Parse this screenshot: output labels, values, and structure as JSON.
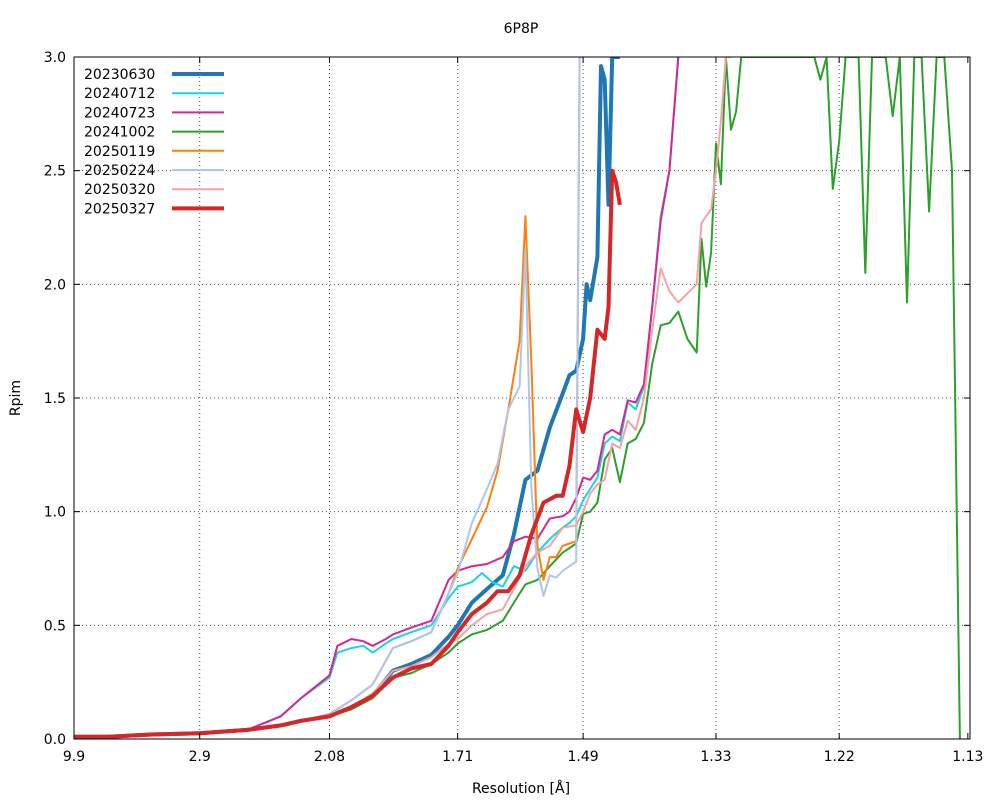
{
  "chart_data": {
    "type": "line",
    "title": "6P8P",
    "xlabel": "Resolution [Å]",
    "ylabel": "Rpim",
    "ylim": [
      0,
      3.0
    ],
    "xlim_inv_d2": [
      0.0102,
      0.785
    ],
    "grid": true,
    "legend_position": "top-left",
    "x_ticks": [
      "9.9",
      "2.9",
      "2.08",
      "1.71",
      "1.49",
      "1.33",
      "1.22",
      "1.13"
    ],
    "y_ticks": [
      "0.0",
      "0.5",
      "1.0",
      "1.5",
      "2.0",
      "2.5",
      "3.0"
    ],
    "series": [
      {
        "name": "20230630",
        "color": "#1f77b4",
        "linewidth": 4,
        "x": [
          9.9,
          5.0,
          3.6,
          2.9,
          2.5,
          2.3,
          2.2,
          2.08,
          2.0,
          1.93,
          1.87,
          1.82,
          1.77,
          1.73,
          1.71,
          1.68,
          1.65,
          1.62,
          1.6,
          1.58,
          1.56,
          1.54,
          1.52,
          1.51,
          1.5,
          1.49,
          1.485,
          1.48,
          1.47,
          1.465,
          1.46,
          1.455,
          1.45,
          1.445,
          1.44
        ],
        "y": [
          0.01,
          0.01,
          0.02,
          0.025,
          0.04,
          0.06,
          0.08,
          0.1,
          0.14,
          0.19,
          0.3,
          0.33,
          0.37,
          0.45,
          0.5,
          0.6,
          0.66,
          0.72,
          0.9,
          1.14,
          1.18,
          1.37,
          1.52,
          1.6,
          1.62,
          1.76,
          2.0,
          1.93,
          2.12,
          2.96,
          2.9,
          2.35,
          3.0,
          3.0,
          3.0
        ]
      },
      {
        "name": "20240712",
        "color": "#17d5e6",
        "linewidth": 2,
        "x": [
          9.9,
          5.0,
          3.6,
          2.9,
          2.5,
          2.3,
          2.2,
          2.08,
          2.05,
          2.0,
          1.96,
          1.93,
          1.89,
          1.87,
          1.82,
          1.77,
          1.73,
          1.71,
          1.68,
          1.66,
          1.64,
          1.62,
          1.6,
          1.58,
          1.56,
          1.54,
          1.52,
          1.51,
          1.5,
          1.49,
          1.48,
          1.47,
          1.46,
          1.45,
          1.44,
          1.43,
          1.42,
          1.41,
          1.4,
          1.39,
          1.38,
          1.37
        ],
        "y": [
          0.01,
          0.01,
          0.02,
          0.025,
          0.04,
          0.1,
          0.18,
          0.27,
          0.38,
          0.4,
          0.41,
          0.38,
          0.42,
          0.44,
          0.47,
          0.5,
          0.62,
          0.67,
          0.69,
          0.73,
          0.69,
          0.67,
          0.76,
          0.74,
          0.82,
          0.88,
          0.93,
          0.95,
          0.98,
          1.05,
          1.1,
          1.15,
          1.3,
          1.33,
          1.31,
          1.48,
          1.45,
          1.55,
          1.9,
          2.3,
          2.5,
          3.0
        ]
      },
      {
        "name": "20240723",
        "color": "#d62790",
        "linewidth": 2,
        "x": [
          9.9,
          5.0,
          3.6,
          2.9,
          2.5,
          2.3,
          2.2,
          2.08,
          2.05,
          2.0,
          1.96,
          1.93,
          1.89,
          1.87,
          1.82,
          1.77,
          1.73,
          1.71,
          1.68,
          1.65,
          1.62,
          1.6,
          1.58,
          1.56,
          1.54,
          1.52,
          1.51,
          1.5,
          1.49,
          1.48,
          1.47,
          1.46,
          1.45,
          1.44,
          1.43,
          1.42,
          1.41,
          1.4,
          1.39,
          1.38,
          1.37
        ],
        "y": [
          0.01,
          0.01,
          0.02,
          0.025,
          0.04,
          0.1,
          0.18,
          0.28,
          0.41,
          0.44,
          0.43,
          0.41,
          0.44,
          0.46,
          0.49,
          0.52,
          0.7,
          0.74,
          0.76,
          0.77,
          0.8,
          0.87,
          0.89,
          0.88,
          0.97,
          0.98,
          1.0,
          1.06,
          1.15,
          1.14,
          1.18,
          1.34,
          1.36,
          1.34,
          1.49,
          1.48,
          1.56,
          1.9,
          2.28,
          2.5,
          3.0
        ]
      },
      {
        "name": "20241002",
        "color": "#2ca02c",
        "linewidth": 2,
        "x": [
          9.9,
          5.0,
          3.6,
          2.9,
          2.5,
          2.3,
          2.2,
          2.08,
          2.0,
          1.93,
          1.87,
          1.82,
          1.77,
          1.73,
          1.71,
          1.68,
          1.65,
          1.62,
          1.6,
          1.58,
          1.56,
          1.54,
          1.52,
          1.5,
          1.49,
          1.48,
          1.47,
          1.46,
          1.45,
          1.44,
          1.43,
          1.42,
          1.41,
          1.4,
          1.39,
          1.38,
          1.37,
          1.36,
          1.35,
          1.345,
          1.34,
          1.335,
          1.33,
          1.325,
          1.32,
          1.315,
          1.31,
          1.305,
          1.3,
          1.295,
          1.29,
          1.285,
          1.28,
          1.275,
          1.27,
          1.265,
          1.26,
          1.255,
          1.25,
          1.245,
          1.24,
          1.235,
          1.23,
          1.225,
          1.22,
          1.215,
          1.21,
          1.205,
          1.2,
          1.195,
          1.19,
          1.185,
          1.18,
          1.175,
          1.17,
          1.165,
          1.16,
          1.155,
          1.15,
          1.145,
          1.14,
          1.135
        ],
        "y": [
          0.01,
          0.01,
          0.02,
          0.025,
          0.04,
          0.06,
          0.08,
          0.1,
          0.13,
          0.18,
          0.27,
          0.29,
          0.33,
          0.38,
          0.42,
          0.46,
          0.48,
          0.52,
          0.6,
          0.68,
          0.7,
          0.76,
          0.82,
          0.86,
          0.99,
          1.0,
          1.04,
          1.23,
          1.28,
          1.13,
          1.3,
          1.32,
          1.39,
          1.65,
          1.82,
          1.83,
          1.88,
          1.76,
          1.7,
          2.2,
          1.99,
          2.14,
          2.62,
          2.44,
          3.0,
          2.68,
          2.76,
          3.0,
          3.0,
          3.0,
          3.0,
          3.0,
          3.0,
          3.0,
          3.0,
          3.0,
          3.0,
          3.0,
          3.0,
          3.0,
          3.0,
          2.9,
          3.0,
          2.42,
          2.63,
          3.0,
          3.0,
          3.0,
          2.05,
          3.0,
          3.0,
          3.0,
          2.74,
          3.0,
          1.92,
          3.0,
          3.0,
          2.32,
          3.0,
          3.0,
          2.5,
          0.0
        ]
      },
      {
        "name": "20250119",
        "color": "#ff7f0e",
        "linewidth": 2,
        "x": [
          9.9,
          5.0,
          3.6,
          2.9,
          2.5,
          2.3,
          2.2,
          2.08,
          2.0,
          1.93,
          1.87,
          1.82,
          1.77,
          1.73,
          1.71,
          1.68,
          1.65,
          1.63,
          1.61,
          1.59,
          1.58,
          1.57,
          1.56,
          1.55,
          1.54,
          1.53,
          1.52,
          1.51,
          1.5,
          1.495,
          1.49
        ],
        "y": [
          0.01,
          0.01,
          0.02,
          0.025,
          0.04,
          0.06,
          0.08,
          0.11,
          0.17,
          0.24,
          0.4,
          0.43,
          0.47,
          0.64,
          0.75,
          0.88,
          1.02,
          1.18,
          1.45,
          1.75,
          2.3,
          1.65,
          0.85,
          0.7,
          0.8,
          0.8,
          0.85,
          0.86,
          0.87,
          3.0,
          3.0
        ]
      },
      {
        "name": "20250224",
        "color": "#aec7e8",
        "linewidth": 2,
        "x": [
          9.9,
          5.0,
          3.6,
          2.9,
          2.5,
          2.3,
          2.2,
          2.08,
          2.0,
          1.93,
          1.87,
          1.82,
          1.77,
          1.73,
          1.71,
          1.68,
          1.65,
          1.63,
          1.61,
          1.59,
          1.58,
          1.57,
          1.56,
          1.55,
          1.54,
          1.53,
          1.52,
          1.51,
          1.5,
          1.495,
          1.49
        ],
        "y": [
          0.01,
          0.01,
          0.02,
          0.025,
          0.04,
          0.06,
          0.08,
          0.11,
          0.17,
          0.24,
          0.4,
          0.43,
          0.47,
          0.64,
          0.73,
          0.95,
          1.1,
          1.21,
          1.45,
          1.55,
          2.15,
          1.1,
          0.75,
          0.63,
          0.72,
          0.71,
          0.74,
          0.76,
          0.78,
          3.0,
          3.0
        ]
      },
      {
        "name": "20250320",
        "color": "#f4a3a3",
        "linewidth": 2,
        "x": [
          9.9,
          5.0,
          3.6,
          2.9,
          2.5,
          2.3,
          2.2,
          2.08,
          2.0,
          1.93,
          1.87,
          1.82,
          1.77,
          1.73,
          1.71,
          1.68,
          1.65,
          1.62,
          1.6,
          1.58,
          1.56,
          1.54,
          1.52,
          1.5,
          1.49,
          1.48,
          1.47,
          1.46,
          1.45,
          1.44,
          1.43,
          1.42,
          1.41,
          1.4,
          1.39,
          1.38,
          1.37,
          1.36,
          1.35,
          1.345,
          1.34,
          1.335,
          1.33,
          1.325,
          1.32,
          1.315
        ],
        "y": [
          0.01,
          0.01,
          0.02,
          0.025,
          0.04,
          0.06,
          0.08,
          0.11,
          0.14,
          0.2,
          0.3,
          0.32,
          0.36,
          0.42,
          0.44,
          0.5,
          0.55,
          0.57,
          0.66,
          0.76,
          0.82,
          0.85,
          0.93,
          0.94,
          1.0,
          1.08,
          1.12,
          1.14,
          1.3,
          1.28,
          1.4,
          1.36,
          1.5,
          1.8,
          2.07,
          1.97,
          1.92,
          1.96,
          2.0,
          2.27,
          2.3,
          2.33,
          2.5,
          2.72,
          3.0,
          3.0
        ]
      },
      {
        "name": "20250327",
        "color": "#d62728",
        "linewidth": 4,
        "x": [
          9.9,
          5.0,
          3.6,
          2.9,
          2.5,
          2.3,
          2.2,
          2.08,
          2.0,
          1.93,
          1.87,
          1.82,
          1.77,
          1.73,
          1.71,
          1.68,
          1.65,
          1.63,
          1.61,
          1.59,
          1.57,
          1.55,
          1.53,
          1.52,
          1.51,
          1.5,
          1.49,
          1.48,
          1.47,
          1.46,
          1.455,
          1.45,
          1.445,
          1.44
        ],
        "y": [
          0.01,
          0.01,
          0.02,
          0.025,
          0.04,
          0.06,
          0.08,
          0.1,
          0.14,
          0.19,
          0.27,
          0.31,
          0.33,
          0.41,
          0.47,
          0.55,
          0.6,
          0.65,
          0.65,
          0.72,
          0.9,
          1.04,
          1.07,
          1.07,
          1.2,
          1.45,
          1.35,
          1.5,
          1.8,
          1.76,
          1.9,
          2.5,
          2.45,
          2.35
        ]
      }
    ]
  }
}
